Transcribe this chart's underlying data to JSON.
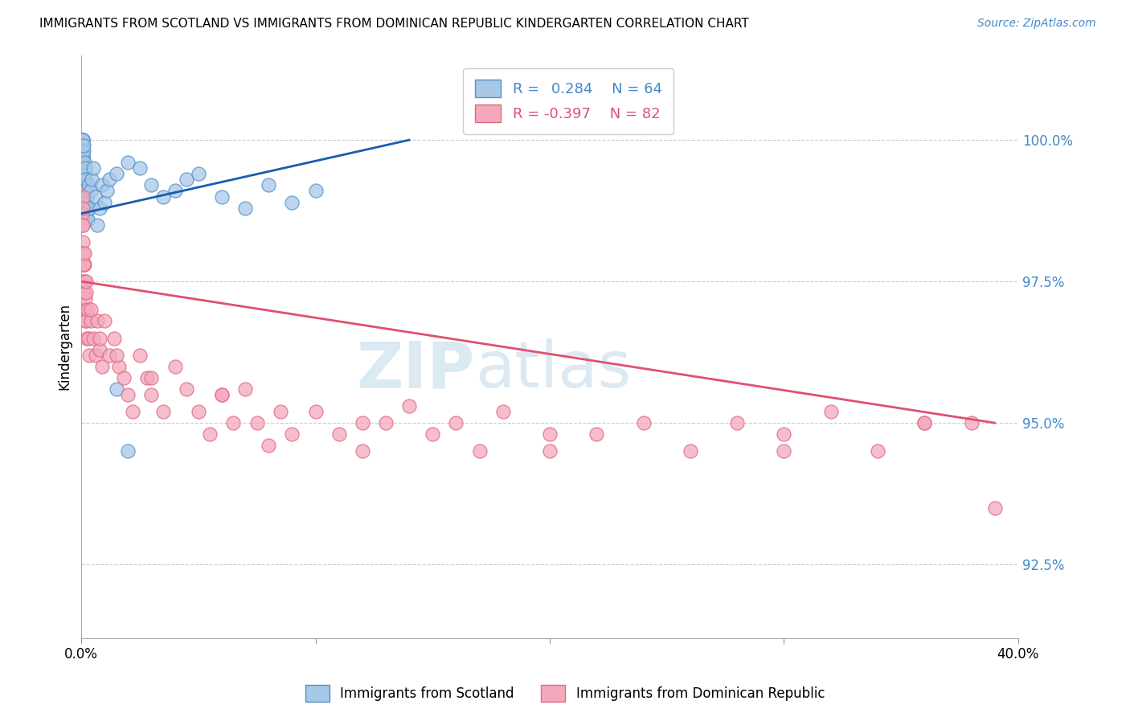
{
  "title": "IMMIGRANTS FROM SCOTLAND VS IMMIGRANTS FROM DOMINICAN REPUBLIC KINDERGARTEN CORRELATION CHART",
  "source": "Source: ZipAtlas.com",
  "ylabel": "Kindergarten",
  "ytick_vals": [
    92.5,
    95.0,
    97.5,
    100.0
  ],
  "xlim": [
    0.0,
    40.0
  ],
  "ylim": [
    91.2,
    101.5
  ],
  "legend_label1": "Immigrants from Scotland",
  "legend_label2": "Immigrants from Dominican Republic",
  "scotland_color": "#a8c8e8",
  "dr_color": "#f4a8bc",
  "scotland_edge": "#5090c8",
  "dr_edge": "#e06880",
  "trend_scotland_color": "#1a5cb0",
  "trend_dr_color": "#e05070",
  "watermark_zip": "ZIP",
  "watermark_atlas": "atlas",
  "R_scotland": 0.284,
  "N_scotland": 64,
  "R_dr": -0.397,
  "N_dr": 82,
  "scotland_x": [
    0.02,
    0.03,
    0.03,
    0.04,
    0.04,
    0.05,
    0.05,
    0.05,
    0.06,
    0.06,
    0.06,
    0.07,
    0.07,
    0.07,
    0.08,
    0.08,
    0.08,
    0.09,
    0.09,
    0.1,
    0.1,
    0.1,
    0.11,
    0.11,
    0.12,
    0.12,
    0.13,
    0.14,
    0.15,
    0.15,
    0.16,
    0.17,
    0.18,
    0.2,
    0.22,
    0.25,
    0.28,
    0.3,
    0.35,
    0.4,
    0.45,
    0.5,
    0.6,
    0.7,
    0.8,
    0.9,
    1.0,
    1.1,
    1.2,
    1.5,
    2.0,
    2.5,
    3.0,
    3.5,
    4.0,
    4.5,
    5.0,
    6.0,
    7.0,
    8.0,
    9.0,
    10.0,
    1.5,
    2.0
  ],
  "scotland_y": [
    99.8,
    99.9,
    100.0,
    99.7,
    99.8,
    99.9,
    100.0,
    100.0,
    99.6,
    99.7,
    99.8,
    99.5,
    99.6,
    99.9,
    99.4,
    99.7,
    100.0,
    99.3,
    99.8,
    99.2,
    99.5,
    99.9,
    99.1,
    99.4,
    99.0,
    99.3,
    98.9,
    98.8,
    99.4,
    99.6,
    99.5,
    99.3,
    99.1,
    98.7,
    98.9,
    99.0,
    98.6,
    99.2,
    98.8,
    99.1,
    99.3,
    99.5,
    99.0,
    98.5,
    98.8,
    99.2,
    98.9,
    99.1,
    99.3,
    99.4,
    99.6,
    99.5,
    99.2,
    99.0,
    99.1,
    99.3,
    99.4,
    99.0,
    98.8,
    99.2,
    98.9,
    99.1,
    95.6,
    94.5
  ],
  "dr_x": [
    0.04,
    0.05,
    0.06,
    0.07,
    0.08,
    0.09,
    0.1,
    0.11,
    0.12,
    0.13,
    0.14,
    0.15,
    0.16,
    0.18,
    0.2,
    0.22,
    0.25,
    0.28,
    0.3,
    0.35,
    0.4,
    0.5,
    0.6,
    0.7,
    0.8,
    0.9,
    1.0,
    1.2,
    1.4,
    1.6,
    1.8,
    2.0,
    2.2,
    2.5,
    2.8,
    3.0,
    3.5,
    4.0,
    4.5,
    5.0,
    5.5,
    6.0,
    6.5,
    7.0,
    7.5,
    8.0,
    8.5,
    9.0,
    10.0,
    11.0,
    12.0,
    13.0,
    14.0,
    15.0,
    16.0,
    17.0,
    18.0,
    20.0,
    22.0,
    24.0,
    26.0,
    28.0,
    30.0,
    32.0,
    34.0,
    36.0,
    38.0,
    0.05,
    0.07,
    0.09,
    0.12,
    0.2,
    0.4,
    0.8,
    1.5,
    3.0,
    6.0,
    12.0,
    20.0,
    30.0,
    36.0,
    39.0
  ],
  "dr_y": [
    98.7,
    99.0,
    98.5,
    98.2,
    98.8,
    97.8,
    97.5,
    97.3,
    97.0,
    97.8,
    97.5,
    97.0,
    97.2,
    96.8,
    97.3,
    96.8,
    96.5,
    97.0,
    96.5,
    96.2,
    96.8,
    96.5,
    96.2,
    96.8,
    96.3,
    96.0,
    96.8,
    96.2,
    96.5,
    96.0,
    95.8,
    95.5,
    95.2,
    96.2,
    95.8,
    95.5,
    95.2,
    96.0,
    95.6,
    95.2,
    94.8,
    95.5,
    95.0,
    95.6,
    95.0,
    94.6,
    95.2,
    94.8,
    95.2,
    94.8,
    94.5,
    95.0,
    95.3,
    94.8,
    95.0,
    94.5,
    95.2,
    94.5,
    94.8,
    95.0,
    94.5,
    95.0,
    94.8,
    95.2,
    94.5,
    95.0,
    95.0,
    98.5,
    98.0,
    97.8,
    98.0,
    97.5,
    97.0,
    96.5,
    96.2,
    95.8,
    95.5,
    95.0,
    94.8,
    94.5,
    95.0,
    93.5
  ],
  "trend_scot_x0": 0.0,
  "trend_scot_x1": 14.0,
  "trend_scot_y0": 98.7,
  "trend_scot_y1": 100.0,
  "trend_dr_x0": 0.0,
  "trend_dr_x1": 39.0,
  "trend_dr_y0": 97.5,
  "trend_dr_y1": 95.0
}
